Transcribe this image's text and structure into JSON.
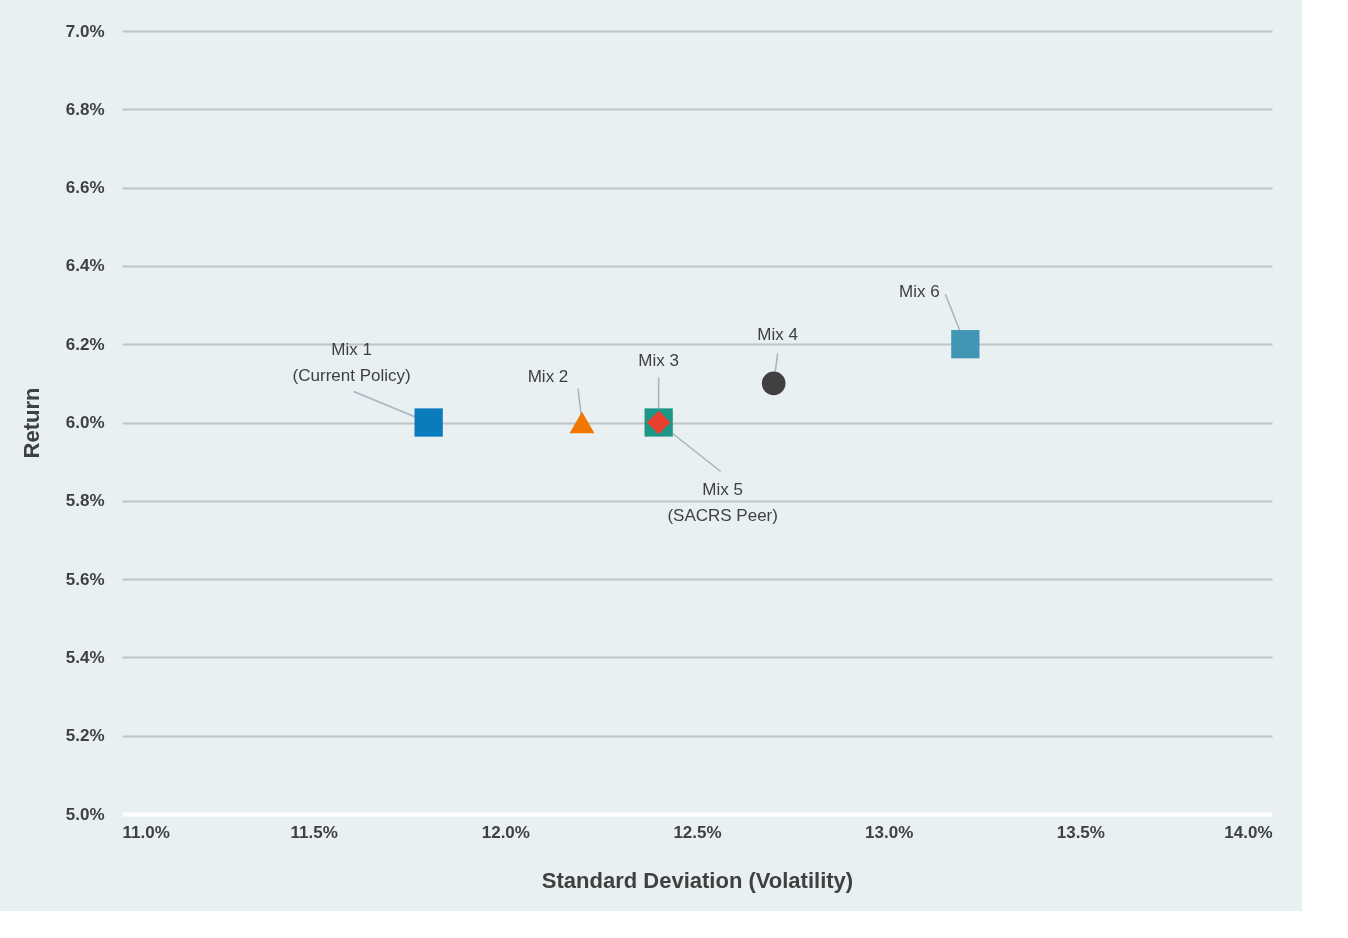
{
  "chart_data": {
    "type": "scatter",
    "xlabel": "Standard Deviation (Volatility)",
    "ylabel": "Return",
    "xlim": [
      11,
      14
    ],
    "ylim": [
      5,
      7
    ],
    "xticks": [
      {
        "value": 11,
        "label": "11.0%"
      },
      {
        "value": 11.5,
        "label": "11.5%"
      },
      {
        "value": 12,
        "label": "12.0%"
      },
      {
        "value": 12.5,
        "label": "12.5%"
      },
      {
        "value": 13,
        "label": "13.0%"
      },
      {
        "value": 13.5,
        "label": "13.5%"
      },
      {
        "value": 14,
        "label": "14.0%"
      }
    ],
    "yticks": [
      {
        "value": 5,
        "label": "5.0%"
      },
      {
        "value": 5.2,
        "label": "5.2%"
      },
      {
        "value": 5.4,
        "label": "5.4%"
      },
      {
        "value": 5.6,
        "label": "5.6%"
      },
      {
        "value": 5.8,
        "label": "5.8%"
      },
      {
        "value": 6,
        "label": "6.0%"
      },
      {
        "value": 6.2,
        "label": "6.2%"
      },
      {
        "value": 6.4,
        "label": "6.4%"
      },
      {
        "value": 6.6,
        "label": "6.6%"
      },
      {
        "value": 6.8,
        "label": "6.8%"
      },
      {
        "value": 7,
        "label": "7.0%"
      }
    ],
    "grid": "y",
    "series": [
      {
        "name": "Mix 1\n(Current Policy)",
        "color": "#0a7bbd",
        "marker": "square",
        "x": [
          11.8
        ],
        "values": [
          6.0
        ]
      },
      {
        "name": "Mix 2",
        "color": "#f07800",
        "marker": "triangle",
        "x": [
          12.2
        ],
        "values": [
          6.0
        ]
      },
      {
        "name": "Mix 3",
        "color": "#1e9685",
        "marker": "square",
        "x": [
          12.4
        ],
        "values": [
          6.0
        ]
      },
      {
        "name": "Mix 4",
        "color": "#404040",
        "marker": "circle",
        "x": [
          12.7
        ],
        "values": [
          6.1
        ]
      },
      {
        "name": "Mix 5\n(SACRS Peer)",
        "color": "#e8412f",
        "marker": "diamond",
        "x": [
          12.4
        ],
        "values": [
          6.0
        ]
      },
      {
        "name": "Mix 6",
        "color": "#4096b4",
        "marker": "square",
        "x": [
          13.2
        ],
        "values": [
          6.2
        ]
      }
    ]
  }
}
